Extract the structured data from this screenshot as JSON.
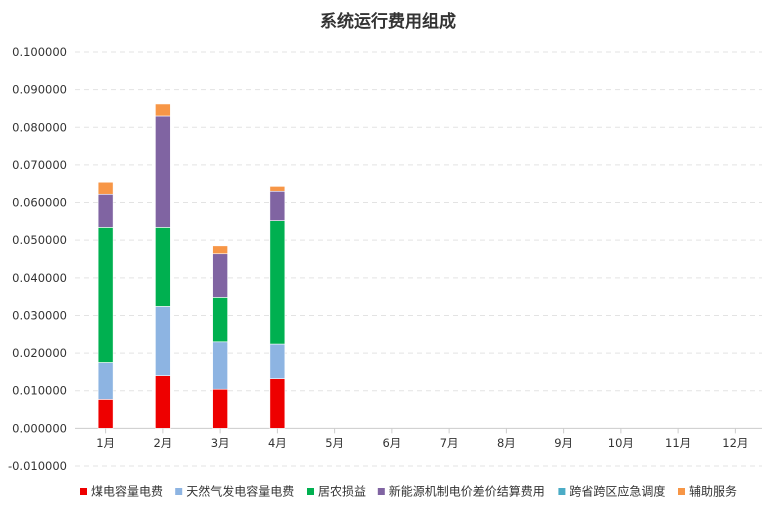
{
  "chart_data": {
    "type": "bar",
    "stacked": true,
    "title": "系统运行费用组成",
    "categories": [
      "1月",
      "2月",
      "3月",
      "4月",
      "5月",
      "6月",
      "7月",
      "8月",
      "9月",
      "10月",
      "11月",
      "12月"
    ],
    "y_ticks": [
      "-0.010000",
      "0.000000",
      "0.010000",
      "0.020000",
      "0.030000",
      "0.040000",
      "0.050000",
      "0.060000",
      "0.070000",
      "0.080000",
      "0.090000",
      "0.100000"
    ],
    "ylim": [
      -0.01,
      0.1
    ],
    "grid": true,
    "legend_position": "bottom",
    "series": [
      {
        "name": "煤电容量电费",
        "color": "#ee0000",
        "values": [
          0.0077,
          0.014,
          0.0104,
          0.0132,
          null,
          null,
          null,
          null,
          null,
          null,
          null,
          null
        ]
      },
      {
        "name": "天然气发电容量电费",
        "color": "#8db4e2",
        "values": [
          0.0098,
          0.0184,
          0.0126,
          0.0092,
          null,
          null,
          null,
          null,
          null,
          null,
          null,
          null
        ]
      },
      {
        "name": "居农损益",
        "color": "#00b050",
        "values": [
          0.0359,
          0.021,
          0.0118,
          0.0328,
          null,
          null,
          null,
          null,
          null,
          null,
          null,
          null
        ]
      },
      {
        "name": "新能源机制电价差价结算费用",
        "color": "#8064a2",
        "values": [
          0.0088,
          0.0296,
          0.0116,
          0.0078,
          null,
          null,
          null,
          null,
          null,
          null,
          null,
          null
        ]
      },
      {
        "name": "跨省跨区应急调度",
        "color": "#4bacc6",
        "values": [
          0,
          0,
          0,
          0,
          null,
          null,
          null,
          null,
          null,
          null,
          null,
          null
        ]
      },
      {
        "name": "辅助服务",
        "color": "#f79646",
        "values": [
          0.0032,
          0.0032,
          0.0021,
          0.0013,
          null,
          null,
          null,
          null,
          null,
          null,
          null,
          null
        ]
      }
    ]
  }
}
